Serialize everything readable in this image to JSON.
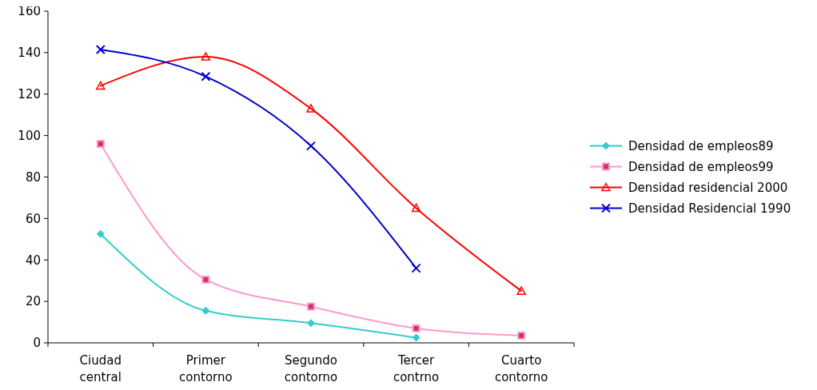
{
  "chart_data": {
    "type": "line",
    "categories": [
      "Ciudad central",
      "Primer contorno",
      "Segundo contorno",
      "Tercer contrno",
      "Cuarto contorno"
    ],
    "ylim": [
      0,
      160
    ],
    "yticks": [
      0,
      20,
      40,
      60,
      80,
      100,
      120,
      140,
      160
    ],
    "grid": false,
    "legend": "right",
    "series": [
      {
        "name": "Densidad de empleos89",
        "color": "#33cccc",
        "marker": "diamond",
        "values": [
          52.5,
          15.5,
          9.5,
          2.5,
          null
        ]
      },
      {
        "name": "Densidad de empleos99",
        "color": "#ff99cc",
        "marker": "square",
        "values": [
          96,
          30.5,
          17.5,
          7,
          3.5
        ]
      },
      {
        "name": "Densidad residencial 2000",
        "color": "#ff0000",
        "marker": "triangle",
        "values": [
          124,
          138,
          113,
          65,
          25
        ]
      },
      {
        "name": "Densidad Residencial 1990",
        "color": "#0000cc",
        "marker": "cross",
        "values": [
          141.5,
          128.5,
          95,
          36,
          null
        ]
      }
    ]
  }
}
